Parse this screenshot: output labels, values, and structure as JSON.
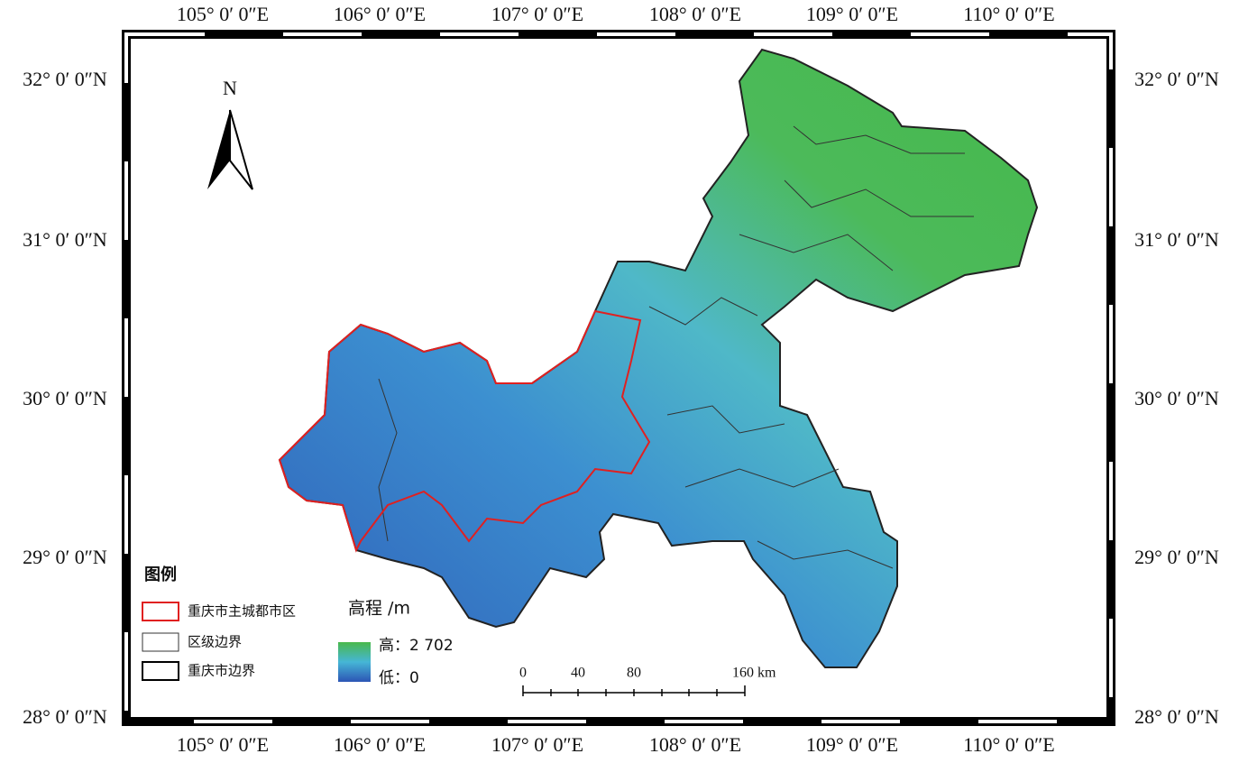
{
  "map": {
    "north_label": "N",
    "longitude_labels": [
      "105° 0′ 0″E",
      "106° 0′ 0″E",
      "107° 0′ 0″E",
      "108° 0′ 0″E",
      "109° 0′ 0″E",
      "110° 0′ 0″E"
    ],
    "latitude_labels": [
      "32° 0′ 0″N",
      "31° 0′ 0″N",
      "30° 0′ 0″N",
      "29° 0′ 0″N",
      "28° 0′ 0″N"
    ],
    "legend": {
      "title": "图例",
      "items": [
        "重庆市主城都市区",
        "区级边界",
        "重庆市边界"
      ]
    },
    "elevation_legend": {
      "title": "高程 /m",
      "high": "高：2 702",
      "low": "低：0"
    },
    "scale_bar": {
      "labels": [
        "0",
        "40",
        "80",
        "160 km"
      ]
    }
  }
}
